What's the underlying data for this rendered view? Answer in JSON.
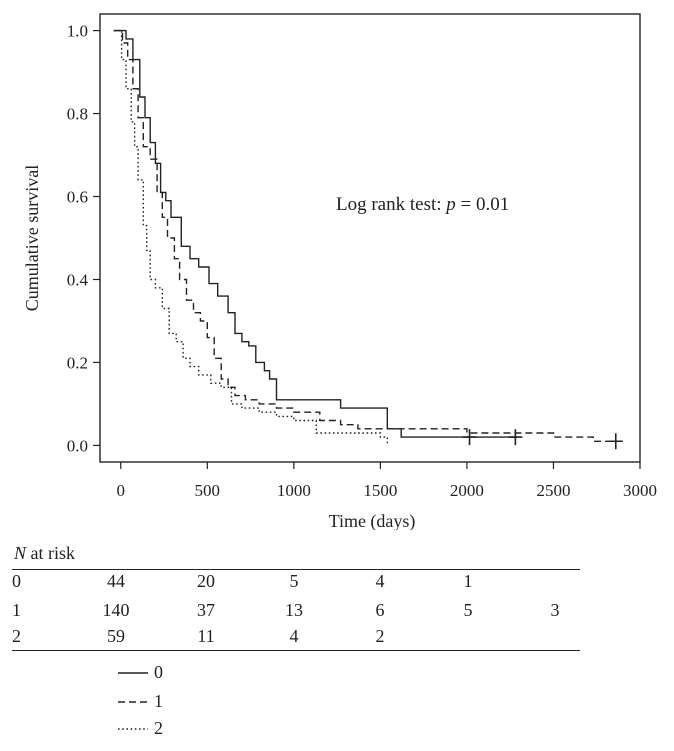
{
  "chart_data": {
    "type": "line",
    "subtype": "kaplan-meier",
    "xlabel": "Time (days)",
    "ylabel": "Cumulative survival",
    "xlim": [
      -120,
      3000
    ],
    "ylim": [
      -0.04,
      1.04
    ],
    "x_ticks": [
      0,
      500,
      1000,
      1500,
      2000,
      2500,
      3000
    ],
    "y_ticks": [
      0.0,
      0.2,
      0.4,
      0.6,
      0.8,
      1.0
    ],
    "y_tick_labels": [
      "0.0",
      "0.2",
      "0.4",
      "0.6",
      "0.8",
      "1.0"
    ],
    "grid": false,
    "annotation": {
      "prefix": "Log rank test: ",
      "p_symbol": "p",
      "suffix": " = 0.01"
    },
    "series": [
      {
        "name": "0",
        "style": "solid",
        "steps": [
          [
            -40,
            1.0
          ],
          [
            30,
            0.98
          ],
          [
            70,
            0.93
          ],
          [
            110,
            0.84
          ],
          [
            140,
            0.79
          ],
          [
            170,
            0.73
          ],
          [
            200,
            0.68
          ],
          [
            230,
            0.61
          ],
          [
            260,
            0.59
          ],
          [
            290,
            0.55
          ],
          [
            350,
            0.48
          ],
          [
            400,
            0.45
          ],
          [
            450,
            0.43
          ],
          [
            510,
            0.39
          ],
          [
            560,
            0.36
          ],
          [
            620,
            0.32
          ],
          [
            660,
            0.27
          ],
          [
            700,
            0.25
          ],
          [
            740,
            0.24
          ],
          [
            780,
            0.2
          ],
          [
            830,
            0.18
          ],
          [
            860,
            0.16
          ],
          [
            900,
            0.11
          ],
          [
            1100,
            0.11
          ],
          [
            1270,
            0.09
          ],
          [
            1540,
            0.04
          ],
          [
            1620,
            0.02
          ],
          [
            2290,
            0.02
          ]
        ],
        "censored": [
          [
            2015,
            0.02
          ],
          [
            2280,
            0.02
          ]
        ]
      },
      {
        "name": "1",
        "style": "dashed",
        "steps": [
          [
            -40,
            1.0
          ],
          [
            10,
            0.97
          ],
          [
            40,
            0.93
          ],
          [
            70,
            0.86
          ],
          [
            100,
            0.79
          ],
          [
            130,
            0.72
          ],
          [
            170,
            0.69
          ],
          [
            210,
            0.61
          ],
          [
            240,
            0.55
          ],
          [
            270,
            0.5
          ],
          [
            310,
            0.45
          ],
          [
            340,
            0.4
          ],
          [
            380,
            0.35
          ],
          [
            420,
            0.32
          ],
          [
            460,
            0.3
          ],
          [
            500,
            0.26
          ],
          [
            540,
            0.21
          ],
          [
            580,
            0.16
          ],
          [
            620,
            0.14
          ],
          [
            660,
            0.12
          ],
          [
            720,
            0.11
          ],
          [
            800,
            0.1
          ],
          [
            900,
            0.09
          ],
          [
            1000,
            0.08
          ],
          [
            1150,
            0.06
          ],
          [
            1270,
            0.05
          ],
          [
            1370,
            0.04
          ],
          [
            1800,
            0.04
          ],
          [
            2000,
            0.03
          ],
          [
            2200,
            0.03
          ],
          [
            2500,
            0.02
          ],
          [
            2600,
            0.02
          ],
          [
            2730,
            0.01
          ],
          [
            2860,
            0.01
          ]
        ],
        "censored": [
          [
            2860,
            0.01
          ]
        ]
      },
      {
        "name": "2",
        "style": "dotted",
        "steps": [
          [
            -40,
            1.0
          ],
          [
            5,
            0.93
          ],
          [
            30,
            0.86
          ],
          [
            60,
            0.78
          ],
          [
            80,
            0.72
          ],
          [
            100,
            0.64
          ],
          [
            130,
            0.53
          ],
          [
            150,
            0.47
          ],
          [
            170,
            0.4
          ],
          [
            200,
            0.38
          ],
          [
            240,
            0.33
          ],
          [
            280,
            0.27
          ],
          [
            320,
            0.25
          ],
          [
            360,
            0.21
          ],
          [
            400,
            0.19
          ],
          [
            450,
            0.17
          ],
          [
            520,
            0.15
          ],
          [
            580,
            0.14
          ],
          [
            640,
            0.1
          ],
          [
            700,
            0.09
          ],
          [
            800,
            0.08
          ],
          [
            900,
            0.07
          ],
          [
            1000,
            0.06
          ],
          [
            1130,
            0.03
          ],
          [
            1500,
            0.02
          ],
          [
            1540,
            0.0
          ]
        ],
        "censored": []
      }
    ],
    "legend": {
      "placement": "below",
      "entries": [
        {
          "label": "0",
          "style": "solid"
        },
        {
          "label": "1",
          "style": "dashed"
        },
        {
          "label": "2",
          "style": "dotted"
        }
      ]
    }
  },
  "risk_table": {
    "title_var": "N",
    "title_rest": " at risk",
    "rows": [
      {
        "group": "0",
        "counts": [
          "44",
          "20",
          "5",
          "4",
          "1",
          ""
        ]
      },
      {
        "group": "1",
        "counts": [
          "140",
          "37",
          "13",
          "6",
          "5",
          "3"
        ]
      },
      {
        "group": "2",
        "counts": [
          "59",
          "11",
          "4",
          "2",
          "",
          ""
        ]
      }
    ]
  }
}
